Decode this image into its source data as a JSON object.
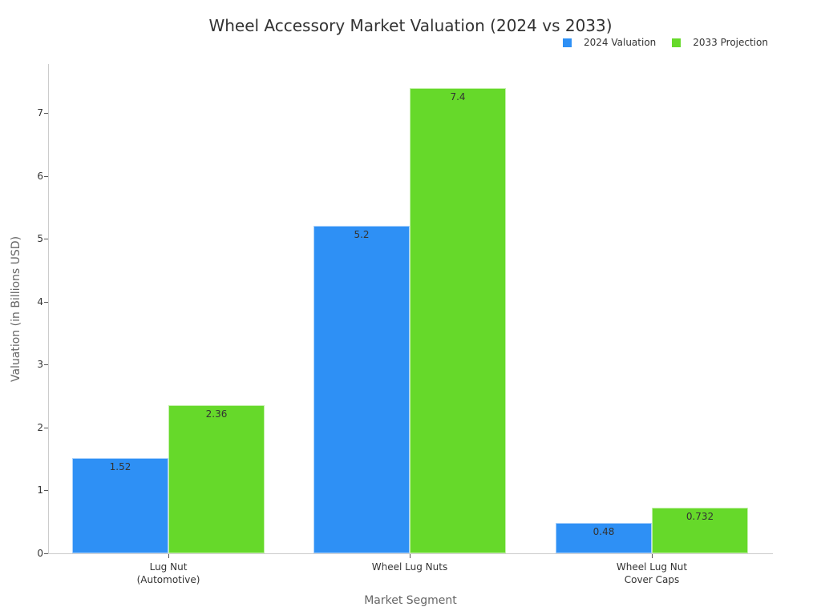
{
  "chart_data": {
    "type": "bar",
    "title": "Wheel Accessory Market Valuation (2024 vs 2033)",
    "xlabel": "Market Segment",
    "ylabel": "Valuation (in Billions USD)",
    "categories": [
      "Lug Nut\n(Automotive)",
      "Wheel Lug Nuts",
      "Wheel Lug Nut\nCover Caps"
    ],
    "category_lines": [
      [
        "Lug Nut",
        "(Automotive)"
      ],
      [
        "Wheel Lug Nuts"
      ],
      [
        "Wheel Lug Nut",
        "Cover Caps"
      ]
    ],
    "series": [
      {
        "name": "2024 Valuation",
        "color": "#2e90f5",
        "values": [
          1.52,
          5.2,
          0.48
        ],
        "labels": [
          "1.52",
          "5.2",
          "0.48"
        ]
      },
      {
        "name": "2033 Projection",
        "color": "#66d92a",
        "values": [
          2.36,
          7.4,
          0.732
        ],
        "labels": [
          "2.36",
          "7.4",
          "0.732"
        ]
      }
    ],
    "ylim": [
      0,
      7.8
    ],
    "yticks": [
      0,
      1,
      2,
      3,
      4,
      5,
      6,
      7
    ],
    "grid": false,
    "legend_position": "top-right"
  }
}
